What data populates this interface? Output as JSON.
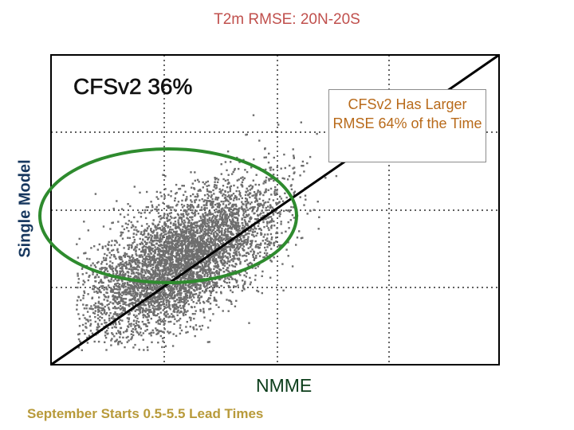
{
  "chart_data": {
    "type": "scatter",
    "title": "T2m RMSE: 20N-20S",
    "xlabel": "NMME",
    "ylabel": "Single Model",
    "model_label": "CFSv2 36%",
    "annotation": "CFSv2 Has Larger RMSE 64% of the Time",
    "footnote": "September Starts 0.5-5.5 Lead Times",
    "grid": true,
    "series": [
      {
        "name": "CFSv2",
        "color": "#6e6e6e"
      }
    ],
    "reference_line": "y = x",
    "highlight": "ellipse",
    "colors": {
      "points": "#6e6e6e",
      "ellipse": "#2e8b2e",
      "diagonal": "#000000"
    }
  }
}
